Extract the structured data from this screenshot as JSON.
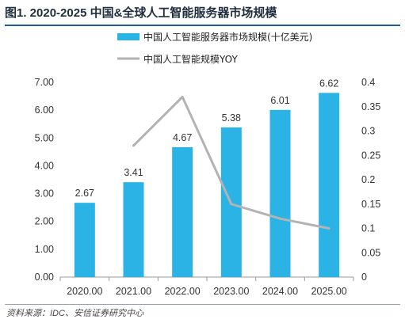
{
  "title": "图1. 2020-2025 中国&全球人工智能服务器市场规模",
  "source": "资料来源：IDC、安信证券研究中心",
  "chart_data": {
    "type": "bar",
    "categories": [
      "2020.00",
      "2021.00",
      "2022.00",
      "2023.00",
      "2024.00",
      "2025.00"
    ],
    "series": [
      {
        "name": "中国人工智能服务器市场规模(十亿美元)",
        "type": "bar",
        "axis": "left",
        "color": "#2bb3e6",
        "values": [
          2.67,
          3.41,
          4.67,
          5.38,
          6.01,
          6.62
        ],
        "labels": [
          "2.67",
          "3.41",
          "4.67",
          "5.38",
          "6.01",
          "6.62"
        ]
      },
      {
        "name": "中国人工智能规模YOY",
        "type": "line",
        "axis": "right",
        "color": "#b3b3b3",
        "values": [
          null,
          0.27,
          0.37,
          0.15,
          0.12,
          0.1
        ]
      }
    ],
    "y_left": {
      "range": [
        0,
        7
      ],
      "ticks": [
        0,
        1,
        2,
        3,
        4,
        5,
        6,
        7
      ],
      "tick_labels": [
        "0.00",
        "1.00",
        "2.00",
        "3.00",
        "4.00",
        "5.00",
        "6.00",
        "7.00"
      ]
    },
    "y_right": {
      "range": [
        0,
        0.4
      ],
      "ticks": [
        0,
        0.05,
        0.1,
        0.15,
        0.2,
        0.25,
        0.3,
        0.35,
        0.4
      ],
      "tick_labels": [
        "0",
        "0.05",
        "0.1",
        "0.15",
        "0.2",
        "0.25",
        "0.3",
        "0.35",
        "0.4"
      ]
    },
    "grid": false,
    "legend": "top"
  }
}
